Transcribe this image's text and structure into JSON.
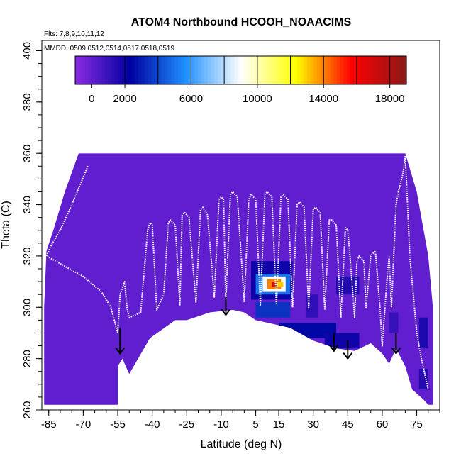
{
  "chart_data": {
    "type": "heatmap",
    "title": "ATOM4 Northbound HCOOH_NOAACIMS",
    "notes": [
      "Flts: 7,8,9,10,11,12",
      "MMDD: 0509,0512,0514,0517,0518,0519"
    ],
    "xlabel": "Latitude (deg N)",
    "ylabel": "Theta (C)",
    "xlim": [
      -88,
      85
    ],
    "ylim": [
      260,
      404
    ],
    "x_ticks": [
      -85,
      -70,
      -55,
      -40,
      -25,
      -10,
      5,
      15,
      30,
      45,
      60,
      75
    ],
    "y_ticks": [
      260,
      280,
      300,
      320,
      340,
      360,
      380,
      400
    ],
    "colorbar": {
      "ticks": [
        0,
        2000,
        6000,
        10000,
        14000,
        18000
      ],
      "range": [
        -1000,
        19000
      ],
      "colors": [
        "#8a2be2",
        "#0000a0",
        "#1e90ff",
        "#ffffff",
        "#ffff00",
        "#ff0000",
        "#8b1a1a"
      ]
    },
    "domain": {
      "top_theta": 360,
      "bottom_boundary": [
        [
          -80,
          262
        ],
        [
          -55,
          262
        ],
        [
          -55,
          277
        ],
        [
          -53,
          280
        ],
        [
          -50,
          274
        ],
        [
          -41,
          288
        ],
        [
          -30,
          295
        ],
        [
          -25,
          295
        ],
        [
          -15,
          298
        ],
        [
          -5,
          299
        ],
        [
          0,
          298
        ],
        [
          5,
          295
        ],
        [
          15,
          293
        ],
        [
          20,
          292
        ],
        [
          30,
          287
        ],
        [
          40,
          284
        ],
        [
          48,
          283
        ],
        [
          55,
          286
        ],
        [
          60,
          282
        ],
        [
          63,
          278
        ],
        [
          66,
          284
        ],
        [
          70,
          277
        ],
        [
          73,
          268
        ],
        [
          78,
          264
        ],
        [
          80,
          262
        ]
      ],
      "left_edge": [
        [
          360,
          -72
        ],
        [
          345,
          -78
        ],
        [
          330,
          -83
        ],
        [
          322,
          -86
        ],
        [
          300,
          -87
        ],
        [
          262,
          -87
        ]
      ],
      "right_edge": [
        [
          360,
          70
        ],
        [
          345,
          75
        ],
        [
          330,
          78
        ],
        [
          320,
          80
        ],
        [
          300,
          82
        ],
        [
          262,
          82
        ]
      ]
    },
    "background_value": 0,
    "enhancements": [
      {
        "lat": [
          3,
          21
        ],
        "theta": [
          303,
          318
        ],
        "value": 2000
      },
      {
        "lat": [
          5,
          20
        ],
        "theta": [
          305,
          313
        ],
        "value": 5000
      },
      {
        "lat": [
          8,
          18
        ],
        "theta": [
          306,
          312
        ],
        "value": 9000
      },
      {
        "lat": [
          10,
          16
        ],
        "theta": [
          307,
          311
        ],
        "value": 14000
      },
      {
        "lat": [
          12,
          14
        ],
        "theta": [
          308,
          310
        ],
        "value": 17500
      },
      {
        "lat": [
          14,
          17
        ],
        "theta": [
          308,
          310
        ],
        "value": 13000
      },
      {
        "lat": [
          5,
          20
        ],
        "theta": [
          296,
          302
        ],
        "value": 3500
      },
      {
        "lat": [
          15,
          40
        ],
        "theta": [
          288,
          294
        ],
        "value": 2500
      },
      {
        "lat": [
          35,
          50
        ],
        "theta": [
          284,
          290
        ],
        "value": 2000
      },
      {
        "lat": [
          40,
          50
        ],
        "theta": [
          305,
          312
        ],
        "value": 1500
      },
      {
        "lat": [
          27,
          32
        ],
        "theta": [
          296,
          305
        ],
        "value": 1200
      },
      {
        "lat": [
          63,
          67
        ],
        "theta": [
          290,
          298
        ],
        "value": 1000
      },
      {
        "lat": [
          76,
          80
        ],
        "theta": [
          284,
          296
        ],
        "value": 1600
      },
      {
        "lat": [
          76,
          80
        ],
        "theta": [
          268,
          276
        ],
        "value": 1500
      }
    ],
    "arrows": [
      {
        "lat": -54,
        "theta_top": 292,
        "theta_tip": 282
      },
      {
        "lat": -8,
        "theta_top": 304,
        "theta_tip": 297
      },
      {
        "lat": 39,
        "theta_top": 290,
        "theta_tip": 283
      },
      {
        "lat": 45,
        "theta_top": 287,
        "theta_tip": 280
      },
      {
        "lat": 66,
        "theta_top": 290,
        "theta_tip": 282
      }
    ],
    "flight_track": [
      [
        -68,
        355
      ],
      [
        -75,
        340
      ],
      [
        -80,
        330
      ],
      [
        -84,
        324
      ],
      [
        -86,
        320
      ],
      [
        -78,
        316
      ],
      [
        -70,
        312
      ],
      [
        -62,
        306
      ],
      [
        -58,
        300
      ],
      [
        -55,
        290
      ],
      [
        -54,
        305
      ],
      [
        -52,
        310
      ],
      [
        -51,
        300
      ],
      [
        -50,
        296
      ],
      [
        -45,
        298
      ],
      [
        -42,
        330
      ],
      [
        -41,
        333
      ],
      [
        -40,
        332
      ],
      [
        -38,
        299
      ],
      [
        -35,
        305
      ],
      [
        -33,
        333
      ],
      [
        -32,
        334
      ],
      [
        -30,
        332
      ],
      [
        -28,
        301
      ],
      [
        -27,
        336
      ],
      [
        -26,
        337
      ],
      [
        -24,
        335
      ],
      [
        -21,
        302
      ],
      [
        -19,
        338
      ],
      [
        -18,
        339
      ],
      [
        -16,
        336
      ],
      [
        -13,
        304
      ],
      [
        -11,
        342
      ],
      [
        -10,
        343
      ],
      [
        -9,
        342
      ],
      [
        -8,
        302
      ],
      [
        -6,
        344
      ],
      [
        -5,
        345
      ],
      [
        -3,
        343
      ],
      [
        0,
        302
      ],
      [
        2,
        342
      ],
      [
        3,
        344
      ],
      [
        5,
        342
      ],
      [
        7,
        301
      ],
      [
        9,
        344
      ],
      [
        10,
        345
      ],
      [
        12,
        343
      ],
      [
        14,
        301
      ],
      [
        16,
        343
      ],
      [
        17,
        344
      ],
      [
        19,
        342
      ],
      [
        21,
        300
      ],
      [
        23,
        340
      ],
      [
        24,
        341
      ],
      [
        26,
        339
      ],
      [
        28,
        300
      ],
      [
        30,
        338
      ],
      [
        31,
        339
      ],
      [
        33,
        337
      ],
      [
        35,
        299
      ],
      [
        37,
        334
      ],
      [
        38,
        334
      ],
      [
        40,
        332
      ],
      [
        42,
        296
      ],
      [
        44,
        331
      ],
      [
        45,
        330
      ],
      [
        46,
        320
      ],
      [
        48,
        296
      ],
      [
        49,
        318
      ],
      [
        50,
        320
      ],
      [
        52,
        318
      ],
      [
        53,
        300
      ],
      [
        55,
        320
      ],
      [
        57,
        322
      ],
      [
        59,
        300
      ],
      [
        60,
        285
      ],
      [
        62,
        310
      ],
      [
        63,
        320
      ],
      [
        64,
        300
      ],
      [
        66,
        340
      ],
      [
        67,
        345
      ],
      [
        69,
        352
      ],
      [
        70,
        359
      ],
      [
        71,
        340
      ],
      [
        72,
        320
      ],
      [
        74,
        300
      ],
      [
        75,
        290
      ],
      [
        77,
        280
      ],
      [
        80,
        268
      ]
    ]
  }
}
